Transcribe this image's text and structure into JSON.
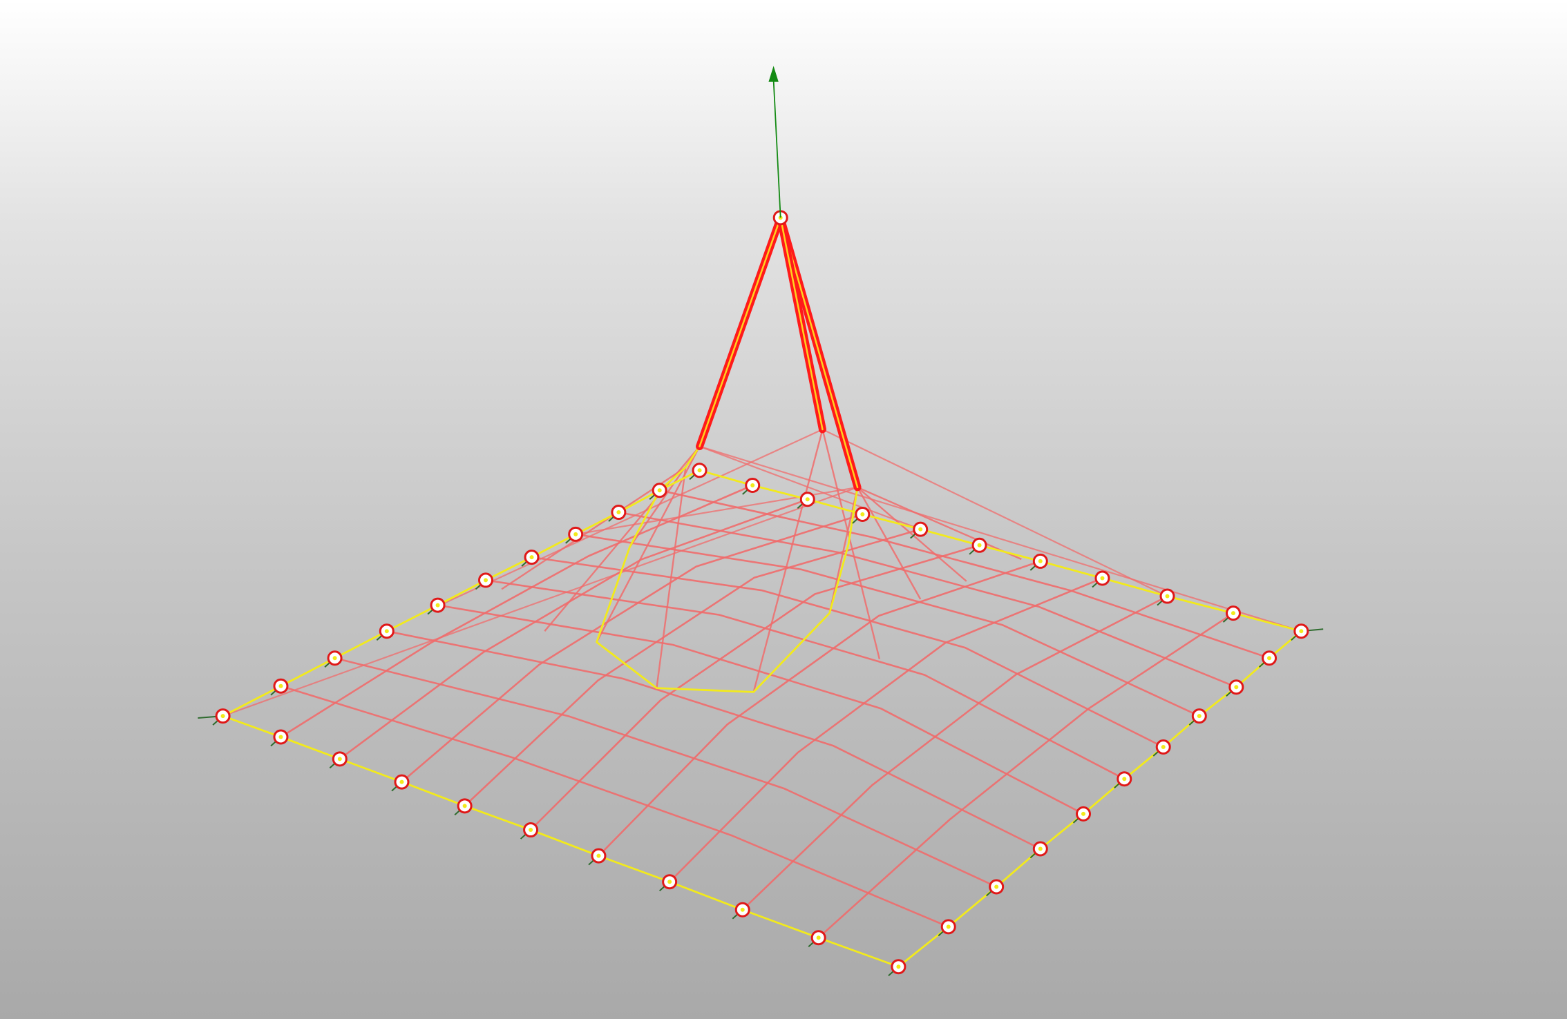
{
  "viewport": {
    "type": "3d-form-finding-view",
    "background": "gradient-grey",
    "contents": [
      "cable-net-membrane",
      "mast-struts",
      "ring-cable",
      "boundary-edge-cables",
      "support-nodes",
      "load-arrow"
    ]
  },
  "colors": {
    "net_cable": "#f06c6c",
    "edge_cable": "#f2ea1c",
    "strut_outer": "#ff1a1a",
    "strut_inner": "#ffd21f",
    "node_outline": "#e01818",
    "node_fill": "#ffffff",
    "node_center": "#f2ea1c",
    "support_tick": "#2e6b2e",
    "load_arrow": "#138a13"
  },
  "icons": {
    "node": "circle-node-icon",
    "load": "arrow-up-icon"
  }
}
